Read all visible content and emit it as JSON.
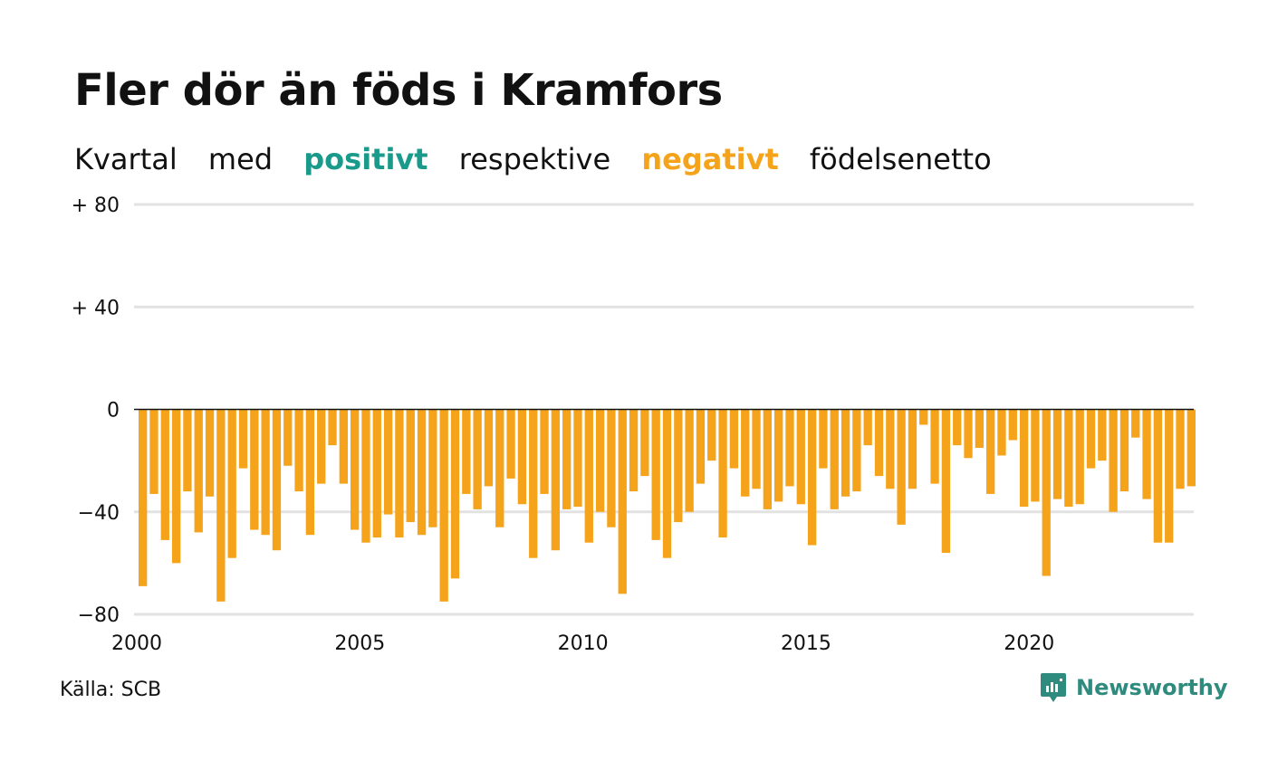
{
  "header": {
    "title": "Fler dör än föds i Kramfors",
    "subtitle_words": [
      "Kvartal",
      "med",
      "positivt",
      "respektive",
      "negativt",
      "födelsenetto"
    ]
  },
  "footer": {
    "source": "Källa: SCB",
    "brand": "Newsworthy"
  },
  "colors": {
    "positive": "#1a9a8a",
    "negative": "#f5a31a",
    "grid": "#e2e2e2",
    "zero_line": "#111111",
    "brand": "#2e8b7e"
  },
  "chart_data": {
    "type": "bar",
    "ylim": [
      -80,
      80
    ],
    "yticks": [
      80,
      40,
      0,
      -40,
      -80
    ],
    "ytick_labels": [
      "+ 80",
      "+ 40",
      "0",
      "−40",
      "−80"
    ],
    "xlim": [
      2000,
      2023.75
    ],
    "xticks": [
      2000,
      2005,
      2010,
      2015,
      2020
    ],
    "xtick_labels": [
      "2000",
      "2005",
      "2010",
      "2015",
      "2020"
    ],
    "x_start_year": 2000,
    "periods_per_year": 4,
    "grid": true,
    "values": [
      -69,
      -33,
      -51,
      -60,
      -32,
      -48,
      -34,
      -75,
      -58,
      -23,
      -47,
      -49,
      -55,
      -22,
      -32,
      -49,
      -29,
      -14,
      -29,
      -47,
      -52,
      -50,
      -41,
      -50,
      -44,
      -49,
      -46,
      -75,
      -66,
      -33,
      -39,
      -30,
      -46,
      -27,
      -37,
      -58,
      -33,
      -55,
      -39,
      -38,
      -52,
      -40,
      -46,
      -72,
      -32,
      -26,
      -51,
      -58,
      -44,
      -40,
      -29,
      -20,
      -50,
      -23,
      -34,
      -31,
      -39,
      -36,
      -30,
      -37,
      -53,
      -23,
      -39,
      -34,
      -32,
      -14,
      -26,
      -31,
      -45,
      -31,
      -6,
      -29,
      -56,
      -14,
      -19,
      -15,
      -33,
      -18,
      -12,
      -38,
      -36,
      -65,
      -35,
      -38,
      -37,
      -23,
      -20,
      -40,
      -32,
      -11,
      -35,
      -52,
      -52,
      -31,
      -30
    ]
  }
}
